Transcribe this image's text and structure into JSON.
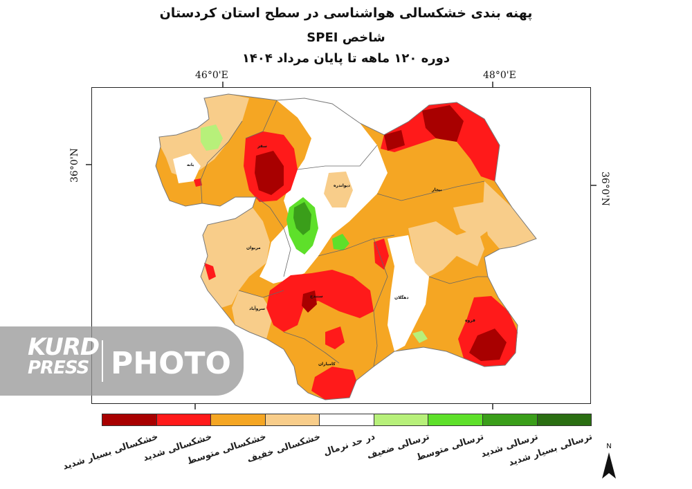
{
  "titles": {
    "line1": "پهنه بندی خشکسالی هواشناسی در سطح استان کردستان",
    "line2": "شاخص SPEI",
    "line3": "دوره ۱۲۰ ماهه تا پایان مرداد ۱۴۰۴"
  },
  "axes": {
    "top_left": "46°0'E",
    "top_right": "48°0'E",
    "left": "36°0'N",
    "right": "36°0'N"
  },
  "legend": [
    {
      "label": "خشکسالی بسیار شدید",
      "color": "#a80000"
    },
    {
      "label": "خشکسالی شدید",
      "color": "#ff1a1a"
    },
    {
      "label": "خشکسالی متوسط",
      "color": "#f5a623"
    },
    {
      "label": "خشکسالی خفیف",
      "color": "#f8cd8a"
    },
    {
      "label": "در حد نرمال",
      "color": "#ffffff"
    },
    {
      "label": "ترسالی ضعیف",
      "color": "#b7f07a"
    },
    {
      "label": "ترسالی متوسط",
      "color": "#5ee02a"
    },
    {
      "label": "ترسالی شدید",
      "color": "#3a9e1a"
    },
    {
      "label": "ترسالی بسیار شدید",
      "color": "#2a6e12"
    }
  ],
  "cities": {
    "baneh": "بانه",
    "saqqez": "سقز",
    "divandarreh": "دیواندره",
    "bijar": "بیجار",
    "marivan": "مریوان",
    "sanandaj": "سنندج",
    "sarvabad": "سروآباد",
    "dehgolan": "دهگلان",
    "qorveh": "قروه",
    "kamyaran": "کامیاران"
  },
  "north_label": "N",
  "watermark": {
    "brand_top": "KURD",
    "brand_bottom": "PRESS",
    "word": "PHOTO"
  }
}
